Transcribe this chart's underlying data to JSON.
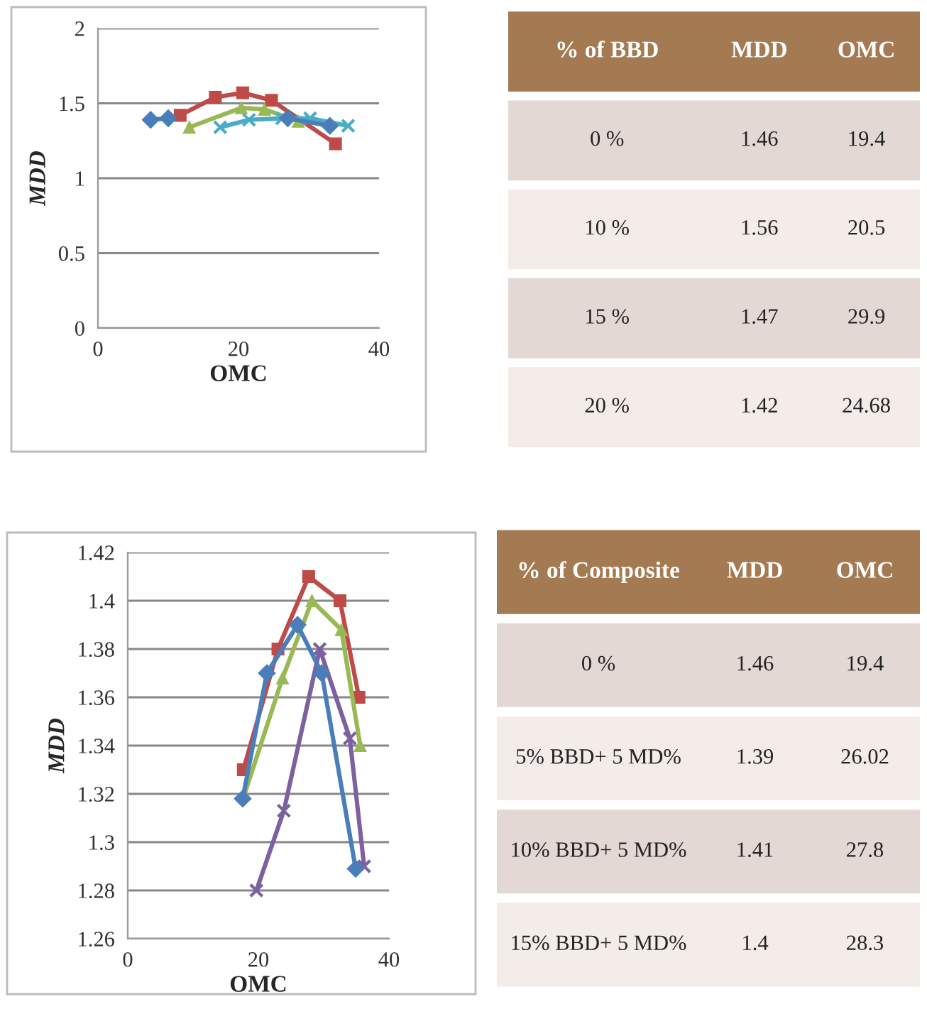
{
  "chart_data": [
    {
      "type": "line",
      "xlabel": "OMC",
      "ylabel": "MDD",
      "xlim": [
        0,
        40
      ],
      "xticks": [
        0,
        20,
        40
      ],
      "ylim": [
        0,
        2
      ],
      "yticks": [
        0,
        0.5,
        1,
        1.5,
        2
      ],
      "grid": "y",
      "line_style": "solid",
      "series": [
        {
          "color": "#4a7ebb",
          "marker": "diamond",
          "x": [
            7.5,
            10,
            20,
            27,
            33
          ],
          "values": [
            1.39,
            1.4,
            null,
            1.4,
            1.35
          ]
        },
        {
          "color": "#be4b48",
          "marker": "square",
          "x": [
            11.7,
            16.7,
            20.6,
            24.7,
            33.8
          ],
          "values": [
            1.42,
            1.54,
            1.57,
            1.52,
            1.23
          ]
        },
        {
          "color": "#98b954",
          "marker": "triangle",
          "x": [
            13,
            20.4,
            23.7,
            28.5
          ],
          "values": [
            1.34,
            1.47,
            1.46,
            1.38
          ]
        },
        {
          "color": "#4bacc6",
          "marker": "cross",
          "x": [
            17.4,
            21.5,
            26.2,
            30.2,
            35.6
          ],
          "values": [
            1.34,
            1.39,
            1.4,
            1.4,
            1.35
          ]
        }
      ]
    },
    {
      "type": "other",
      "annotations": [
        "% of BBD",
        "MDD",
        "OMC",
        "0 %",
        "1.46",
        "19.4",
        "10 %",
        "1.56",
        "20.5",
        "15 %",
        "1.47",
        "29.9",
        "20 %",
        "1.42",
        "24.68"
      ]
    },
    {
      "type": "line",
      "xlabel": "OMC",
      "ylabel": "MDD",
      "xlim": [
        0,
        40
      ],
      "xticks": [
        0,
        20,
        40
      ],
      "ylim": [
        1.26,
        1.42
      ],
      "yticks": [
        1.26,
        1.28,
        1.3,
        1.32,
        1.34,
        1.36,
        1.38,
        1.4,
        1.42
      ],
      "grid": "y",
      "line_style": "solid",
      "series": [
        {
          "color": "#4a7ebb",
          "marker": "diamond",
          "x": [
            17.6,
            21.3,
            26.0,
            29.7,
            34.9
          ],
          "values": [
            1.318,
            1.37,
            1.39,
            1.37,
            1.289
          ]
        },
        {
          "color": "#be4b48",
          "marker": "square",
          "x": [
            17.7,
            23.0,
            27.7,
            32.5,
            35.4
          ],
          "values": [
            1.33,
            1.38,
            1.41,
            1.4,
            1.36
          ]
        },
        {
          "color": "#98b954",
          "marker": "triangle",
          "x": [
            17.9,
            23.7,
            28.2,
            32.7,
            35.6
          ],
          "values": [
            1.32,
            1.368,
            1.4,
            1.388,
            1.34
          ]
        },
        {
          "color": "#7d60a0",
          "marker": "cross",
          "x": [
            19.7,
            23.9,
            29.4,
            34.0,
            36.2
          ],
          "values": [
            1.28,
            1.313,
            1.38,
            1.343,
            1.29
          ]
        }
      ]
    },
    {
      "type": "other",
      "annotations": [
        "% of Composite",
        "MDD",
        "OMC",
        "0 %",
        "1.46",
        "19.4",
        "5% BBD+ 5 MD%",
        "1.39",
        "26.02",
        "10% BBD+ 5 MD%",
        "1.41",
        "27.8",
        "15% BBD+ 5 MD%",
        "1.4",
        "28.3"
      ]
    }
  ]
}
